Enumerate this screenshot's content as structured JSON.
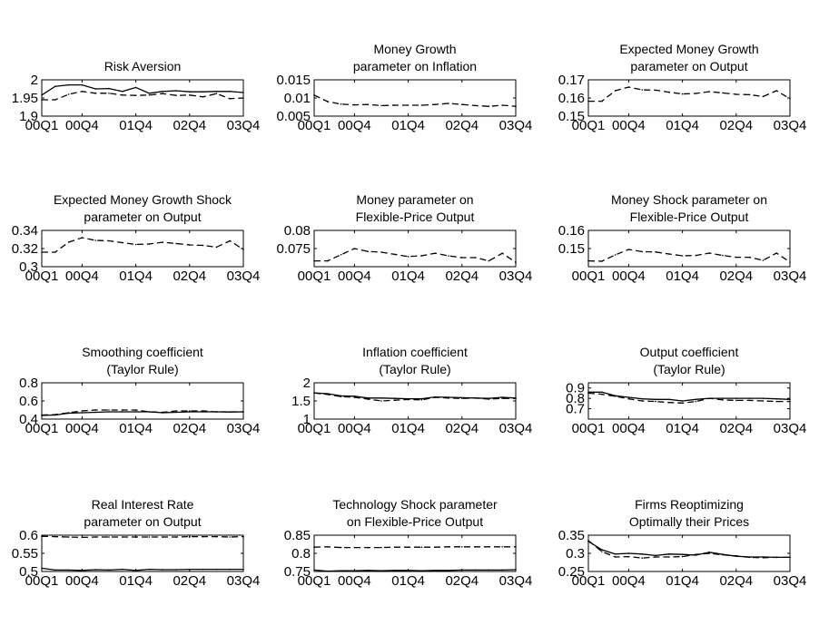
{
  "figure": {
    "x_tick_labels": [
      "00Q1",
      "00Q4",
      "01Q4",
      "02Q4",
      "03Q4"
    ],
    "series_styles": {
      "solid": "#000000",
      "dashed": "#000000"
    }
  },
  "chart_data": [
    {
      "type": "line",
      "title": [
        "Risk Aversion"
      ],
      "xlabel": "",
      "ylabel": "",
      "categories": [
        "00Q1",
        "00Q4",
        "01Q4",
        "02Q4",
        "03Q4"
      ],
      "x": [
        1,
        2,
        3,
        4,
        5,
        6,
        7,
        8,
        9,
        10,
        11,
        12,
        13,
        14,
        15,
        16
      ],
      "ylim": [
        1.9,
        2.0
      ],
      "yticks": [
        1.9,
        1.95,
        2.0
      ],
      "ytick_labels": [
        "1.9",
        "1.95",
        "2"
      ],
      "series": [
        {
          "style": "solid",
          "values": [
            1.958,
            1.982,
            1.986,
            1.986,
            1.975,
            1.976,
            1.968,
            1.979,
            1.963,
            1.968,
            1.97,
            1.967,
            1.967,
            1.968,
            1.968,
            1.965
          ]
        },
        {
          "style": "dashed",
          "values": [
            1.945,
            1.945,
            1.96,
            1.968,
            1.963,
            1.963,
            1.958,
            1.957,
            1.958,
            1.962,
            1.957,
            1.958,
            1.953,
            1.962,
            1.948,
            1.95
          ]
        }
      ]
    },
    {
      "type": "line",
      "title": [
        "Money Growth",
        "parameter on Inflation"
      ],
      "xlabel": "",
      "ylabel": "",
      "categories": [
        "00Q1",
        "00Q4",
        "01Q4",
        "02Q4",
        "03Q4"
      ],
      "x": [
        1,
        2,
        3,
        4,
        5,
        6,
        7,
        8,
        9,
        10,
        11,
        12,
        13,
        14,
        15,
        16
      ],
      "ylim": [
        0.005,
        0.015
      ],
      "yticks": [
        0.005,
        0.01,
        0.015
      ],
      "ytick_labels": [
        "0.005",
        "0.01",
        "0.015"
      ],
      "series": [
        {
          "style": "dashed",
          "values": [
            0.0108,
            0.009,
            0.0083,
            0.0081,
            0.0082,
            0.0079,
            0.008,
            0.008,
            0.008,
            0.0082,
            0.0085,
            0.0082,
            0.0079,
            0.0077,
            0.008,
            0.0077
          ]
        }
      ]
    },
    {
      "type": "line",
      "title": [
        "Expected Money Growth",
        "parameter on Output"
      ],
      "xlabel": "",
      "ylabel": "",
      "categories": [
        "00Q1",
        "00Q4",
        "01Q4",
        "02Q4",
        "03Q4"
      ],
      "x": [
        1,
        2,
        3,
        4,
        5,
        6,
        7,
        8,
        9,
        10,
        11,
        12,
        13,
        14,
        15,
        16
      ],
      "ylim": [
        0.15,
        0.17
      ],
      "yticks": [
        0.15,
        0.16,
        0.17
      ],
      "ytick_labels": [
        "0.15",
        "0.16",
        "0.17"
      ],
      "series": [
        {
          "style": "dashed",
          "values": [
            0.1582,
            0.1582,
            0.164,
            0.166,
            0.1645,
            0.1643,
            0.1632,
            0.1622,
            0.1625,
            0.1635,
            0.1628,
            0.162,
            0.1618,
            0.1608,
            0.164,
            0.1596
          ]
        }
      ]
    },
    {
      "type": "line",
      "title": [
        "Expected Money Growth Shock",
        "parameter on Output"
      ],
      "xlabel": "",
      "ylabel": "",
      "categories": [
        "00Q1",
        "00Q4",
        "01Q4",
        "02Q4",
        "03Q4"
      ],
      "x": [
        1,
        2,
        3,
        4,
        5,
        6,
        7,
        8,
        9,
        10,
        11,
        12,
        13,
        14,
        15,
        16
      ],
      "ylim": [
        0.3,
        0.34
      ],
      "yticks": [
        0.3,
        0.32,
        0.34
      ],
      "ytick_labels": [
        "0.3",
        "0.32",
        "0.34"
      ],
      "series": [
        {
          "style": "dashed",
          "values": [
            0.316,
            0.316,
            0.327,
            0.332,
            0.329,
            0.3285,
            0.3265,
            0.3245,
            0.325,
            0.327,
            0.3255,
            0.324,
            0.3235,
            0.3215,
            0.3285,
            0.319
          ]
        }
      ]
    },
    {
      "type": "line",
      "title": [
        "Money parameter on",
        "Flexible-Price Output"
      ],
      "xlabel": "",
      "ylabel": "",
      "categories": [
        "00Q1",
        "00Q4",
        "01Q4",
        "02Q4",
        "03Q4"
      ],
      "x": [
        1,
        2,
        3,
        4,
        5,
        6,
        7,
        8,
        9,
        10,
        11,
        12,
        13,
        14,
        15,
        16
      ],
      "ylim": [
        0.07,
        0.08
      ],
      "yticks": [
        0.075,
        0.08
      ],
      "ytick_labels": [
        "0.075",
        "0.08"
      ],
      "series": [
        {
          "style": "dashed",
          "values": [
            0.0716,
            0.0716,
            0.0733,
            0.075,
            0.0742,
            0.074,
            0.0734,
            0.0728,
            0.073,
            0.0737,
            0.073,
            0.0725,
            0.0725,
            0.0716,
            0.0737,
            0.0712
          ]
        }
      ]
    },
    {
      "type": "line",
      "title": [
        "Money Shock parameter on",
        "Flexible-Price Output"
      ],
      "xlabel": "",
      "ylabel": "",
      "categories": [
        "00Q1",
        "00Q4",
        "01Q4",
        "02Q4",
        "03Q4"
      ],
      "x": [
        1,
        2,
        3,
        4,
        5,
        6,
        7,
        8,
        9,
        10,
        11,
        12,
        13,
        14,
        15,
        16
      ],
      "ylim": [
        0.14,
        0.16
      ],
      "yticks": [
        0.15,
        0.16
      ],
      "ytick_labels": [
        "0.15",
        "0.16"
      ],
      "series": [
        {
          "style": "dashed",
          "values": [
            0.1432,
            0.143,
            0.1465,
            0.1495,
            0.1483,
            0.1481,
            0.147,
            0.146,
            0.1462,
            0.1475,
            0.1462,
            0.1452,
            0.1452,
            0.1435,
            0.1475,
            0.1425
          ]
        }
      ]
    },
    {
      "type": "line",
      "title": [
        "Smoothing coefficient",
        "(Taylor Rule)"
      ],
      "xlabel": "",
      "ylabel": "",
      "categories": [
        "00Q1",
        "00Q4",
        "01Q4",
        "02Q4",
        "03Q4"
      ],
      "x": [
        1,
        2,
        3,
        4,
        5,
        6,
        7,
        8,
        9,
        10,
        11,
        12,
        13,
        14,
        15,
        16
      ],
      "ylim": [
        0.4,
        0.8
      ],
      "yticks": [
        0.4,
        0.6,
        0.8
      ],
      "ytick_labels": [
        "0.4",
        "0.6",
        "0.8"
      ],
      "series": [
        {
          "style": "solid",
          "values": [
            0.44,
            0.445,
            0.465,
            0.47,
            0.475,
            0.48,
            0.48,
            0.48,
            0.48,
            0.47,
            0.475,
            0.48,
            0.48,
            0.48,
            0.478,
            0.48
          ]
        },
        {
          "style": "dashed",
          "values": [
            0.445,
            0.45,
            0.47,
            0.49,
            0.5,
            0.5,
            0.5,
            0.5,
            0.48,
            0.475,
            0.49,
            0.49,
            0.49,
            0.48,
            0.48,
            0.48
          ]
        }
      ]
    },
    {
      "type": "line",
      "title": [
        "Inflation coefficient",
        "(Taylor Rule)"
      ],
      "xlabel": "",
      "ylabel": "",
      "categories": [
        "00Q1",
        "00Q4",
        "01Q4",
        "02Q4",
        "03Q4"
      ],
      "x": [
        1,
        2,
        3,
        4,
        5,
        6,
        7,
        8,
        9,
        10,
        11,
        12,
        13,
        14,
        15,
        16
      ],
      "ylim": [
        1.0,
        2.0
      ],
      "yticks": [
        1.0,
        1.5,
        2.0
      ],
      "ytick_labels": [
        "1",
        "1.5",
        "2"
      ],
      "series": [
        {
          "style": "solid",
          "values": [
            1.72,
            1.7,
            1.64,
            1.63,
            1.58,
            1.58,
            1.57,
            1.56,
            1.56,
            1.61,
            1.6,
            1.59,
            1.58,
            1.57,
            1.6,
            1.58
          ]
        },
        {
          "style": "dashed",
          "values": [
            1.72,
            1.68,
            1.62,
            1.6,
            1.55,
            1.5,
            1.52,
            1.54,
            1.53,
            1.6,
            1.58,
            1.57,
            1.58,
            1.55,
            1.57,
            1.57
          ]
        }
      ]
    },
    {
      "type": "line",
      "title": [
        "Output coefficient",
        "(Taylor Rule)"
      ],
      "xlabel": "",
      "ylabel": "",
      "categories": [
        "00Q1",
        "00Q4",
        "01Q4",
        "02Q4",
        "03Q4"
      ],
      "x": [
        1,
        2,
        3,
        4,
        5,
        6,
        7,
        8,
        9,
        10,
        11,
        12,
        13,
        14,
        15,
        16
      ],
      "ylim": [
        0.6,
        0.95
      ],
      "yticks": [
        0.7,
        0.8,
        0.9
      ],
      "ytick_labels": [
        "0.7",
        "0.8",
        "0.9"
      ],
      "series": [
        {
          "style": "solid",
          "values": [
            0.86,
            0.86,
            0.825,
            0.81,
            0.795,
            0.79,
            0.79,
            0.775,
            0.79,
            0.8,
            0.8,
            0.8,
            0.8,
            0.8,
            0.795,
            0.79
          ]
        },
        {
          "style": "dashed",
          "values": [
            0.85,
            0.84,
            0.82,
            0.795,
            0.775,
            0.77,
            0.76,
            0.755,
            0.77,
            0.8,
            0.785,
            0.78,
            0.78,
            0.775,
            0.77,
            0.77
          ]
        }
      ]
    },
    {
      "type": "line",
      "title": [
        "Real Interest Rate",
        "parameter on Output"
      ],
      "xlabel": "",
      "ylabel": "",
      "categories": [
        "00Q1",
        "00Q4",
        "01Q4",
        "02Q4",
        "03Q4"
      ],
      "x": [
        1,
        2,
        3,
        4,
        5,
        6,
        7,
        8,
        9,
        10,
        11,
        12,
        13,
        14,
        15,
        16
      ],
      "ylim": [
        0.5,
        0.6
      ],
      "yticks": [
        0.5,
        0.55,
        0.6
      ],
      "ytick_labels": [
        "0.5",
        "0.55",
        "0.6"
      ],
      "series": [
        {
          "style": "solid",
          "values": [
            0.509,
            0.504,
            0.504,
            0.503,
            0.505,
            0.504,
            0.506,
            0.503,
            0.506,
            0.505,
            0.505,
            0.506,
            0.506,
            0.506,
            0.506,
            0.506
          ]
        },
        {
          "style": "dashed",
          "values": [
            0.597,
            0.596,
            0.595,
            0.594,
            0.595,
            0.595,
            0.595,
            0.595,
            0.595,
            0.595,
            0.595,
            0.596,
            0.596,
            0.596,
            0.595,
            0.596
          ]
        }
      ]
    },
    {
      "type": "line",
      "title": [
        "Technology Shock parameter",
        "on Flexible-Price Output"
      ],
      "xlabel": "",
      "ylabel": "",
      "categories": [
        "00Q1",
        "00Q4",
        "01Q4",
        "02Q4",
        "03Q4"
      ],
      "x": [
        1,
        2,
        3,
        4,
        5,
        6,
        7,
        8,
        9,
        10,
        11,
        12,
        13,
        14,
        15,
        16
      ],
      "ylim": [
        0.75,
        0.85
      ],
      "yticks": [
        0.75,
        0.8,
        0.85
      ],
      "ytick_labels": [
        "0.75",
        "0.8",
        "0.85"
      ],
      "series": [
        {
          "style": "solid",
          "values": [
            0.754,
            0.751,
            0.752,
            0.752,
            0.753,
            0.752,
            0.753,
            0.753,
            0.752,
            0.753,
            0.753,
            0.754,
            0.754,
            0.754,
            0.754,
            0.755
          ]
        },
        {
          "style": "dashed",
          "values": [
            0.817,
            0.818,
            0.816,
            0.816,
            0.816,
            0.816,
            0.817,
            0.817,
            0.817,
            0.817,
            0.818,
            0.818,
            0.818,
            0.818,
            0.818,
            0.818
          ]
        }
      ]
    },
    {
      "type": "line",
      "title": [
        "Firms Reoptimizing",
        "Optimally their Prices"
      ],
      "xlabel": "",
      "ylabel": "",
      "categories": [
        "00Q1",
        "00Q4",
        "01Q4",
        "02Q4",
        "03Q4"
      ],
      "x": [
        1,
        2,
        3,
        4,
        5,
        6,
        7,
        8,
        9,
        10,
        11,
        12,
        13,
        14,
        15,
        16
      ],
      "ylim": [
        0.25,
        0.35
      ],
      "yticks": [
        0.25,
        0.3,
        0.35
      ],
      "ytick_labels": [
        "0.25",
        "0.3",
        "0.35"
      ],
      "series": [
        {
          "style": "solid",
          "values": [
            0.333,
            0.31,
            0.298,
            0.3,
            0.298,
            0.294,
            0.298,
            0.297,
            0.295,
            0.303,
            0.297,
            0.292,
            0.29,
            0.29,
            0.289,
            0.289
          ]
        },
        {
          "style": "dashed",
          "values": [
            0.335,
            0.305,
            0.29,
            0.291,
            0.287,
            0.29,
            0.29,
            0.291,
            0.297,
            0.3,
            0.296,
            0.293,
            0.289,
            0.288,
            0.289,
            0.289
          ]
        }
      ]
    }
  ]
}
